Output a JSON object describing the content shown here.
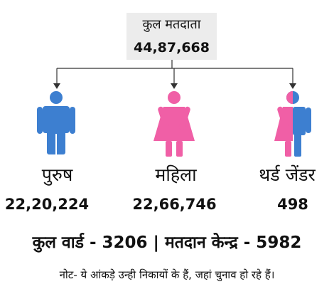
{
  "header": {
    "total_label": "कुल मतदाता",
    "total_value": "44,87,668"
  },
  "groups": [
    {
      "label": "पुरुष",
      "count": "22,20,224",
      "icon": "male-person-icon",
      "color": "#3d7fd0"
    },
    {
      "label": "महिला",
      "count": "22,66,746",
      "icon": "female-person-icon",
      "color": "#f05fa6"
    },
    {
      "label": "थर्ड जेंडर",
      "count": "498",
      "icon": "third-gender-person-icon",
      "colors": [
        "#f05fa6",
        "#3d7fd0"
      ]
    }
  ],
  "summary": "कुल वार्ड - 3206 | मतदान केन्द्र - 5982",
  "note": "नोट- ये आंकड़े उन्ही निकायों के हैं, जहां चुनाव हो रहे हैं।"
}
